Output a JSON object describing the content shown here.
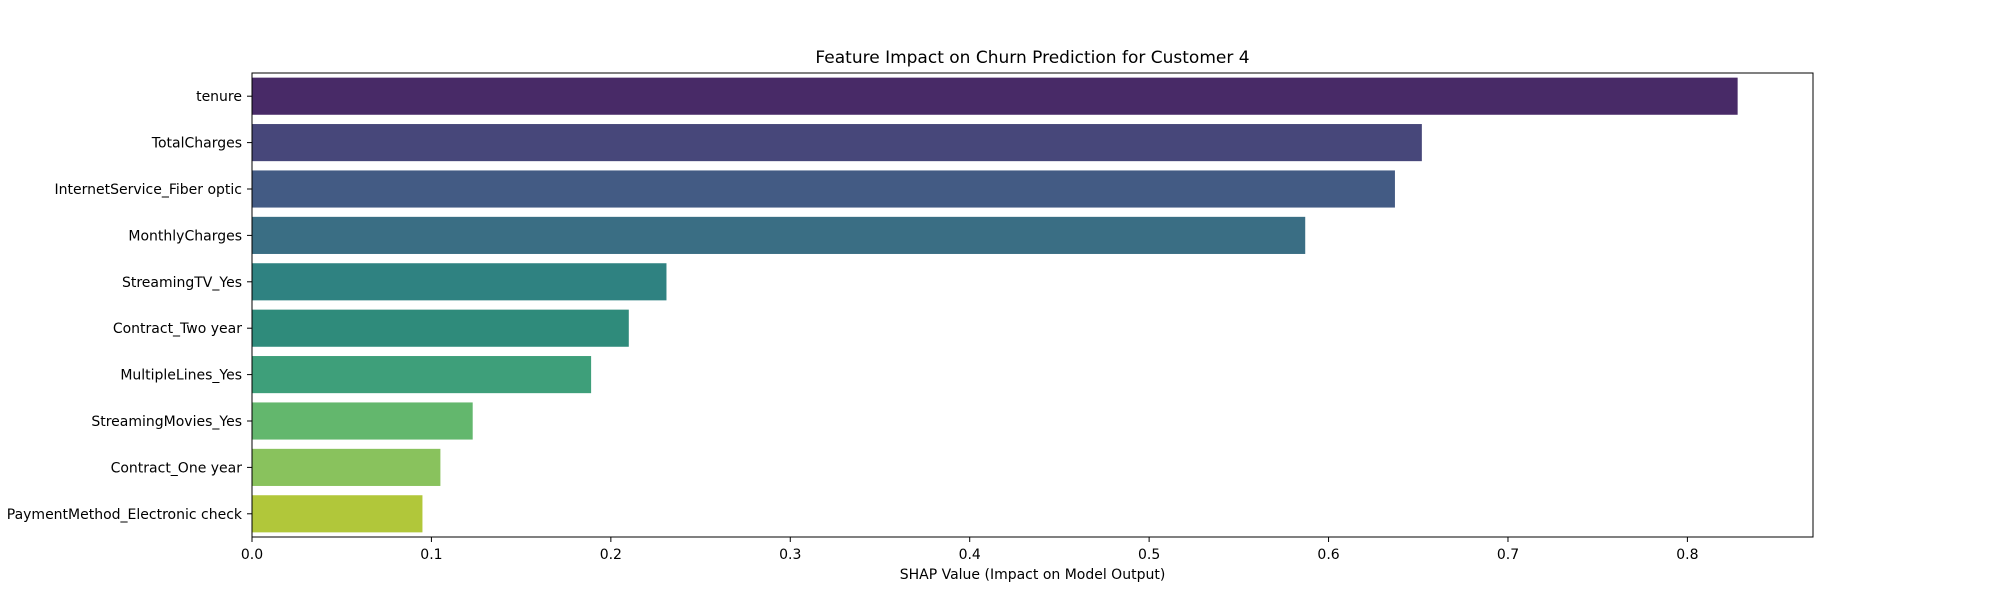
{
  "chart_data": {
    "type": "bar",
    "orientation": "horizontal",
    "title": "Feature Impact on Churn Prediction for Customer 4",
    "xlabel": "SHAP Value (Impact on Model Output)",
    "ylabel": "",
    "xlim": [
      0,
      0.87
    ],
    "xticks": [
      0.0,
      0.1,
      0.2,
      0.3,
      0.4,
      0.5,
      0.6,
      0.7,
      0.8
    ],
    "xtick_labels": [
      "0.0",
      "0.1",
      "0.2",
      "0.3",
      "0.4",
      "0.5",
      "0.6",
      "0.7",
      "0.8"
    ],
    "grid": false,
    "categories": [
      "tenure",
      "TotalCharges",
      "InternetService_Fiber optic",
      "MonthlyCharges",
      "StreamingTV_Yes",
      "Contract_Two year",
      "MultipleLines_Yes",
      "StreamingMovies_Yes",
      "Contract_One year",
      "PaymentMethod_Electronic check"
    ],
    "values": [
      0.828,
      0.652,
      0.637,
      0.587,
      0.231,
      0.21,
      0.189,
      0.123,
      0.105,
      0.095
    ],
    "colors": [
      "#482a67",
      "#47477a",
      "#435b84",
      "#3a6e84",
      "#2f8281",
      "#2f8b7b",
      "#3e9f7a",
      "#63b76d",
      "#89c25d",
      "#b1c73a"
    ]
  }
}
